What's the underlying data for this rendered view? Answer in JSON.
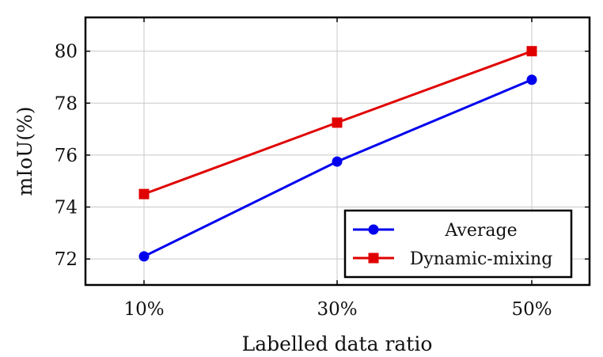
{
  "chart_data": {
    "type": "line",
    "title": "",
    "xlabel": "Labelled data ratio",
    "ylabel": "mIoU(%)",
    "categories": [
      "10%",
      "30%",
      "50%"
    ],
    "ylim": [
      71,
      81.3
    ],
    "yticks": [
      72,
      74,
      76,
      78,
      80
    ],
    "grid": true,
    "legend_position": "bottom-right",
    "series": [
      {
        "name": "Average",
        "values": [
          72.1,
          75.75,
          78.9
        ],
        "color": "#0000ee",
        "marker": "circle"
      },
      {
        "name": "Dynamic-mixing",
        "values": [
          74.5,
          77.25,
          80.0
        ],
        "color": "#e00000",
        "marker": "square"
      }
    ]
  }
}
